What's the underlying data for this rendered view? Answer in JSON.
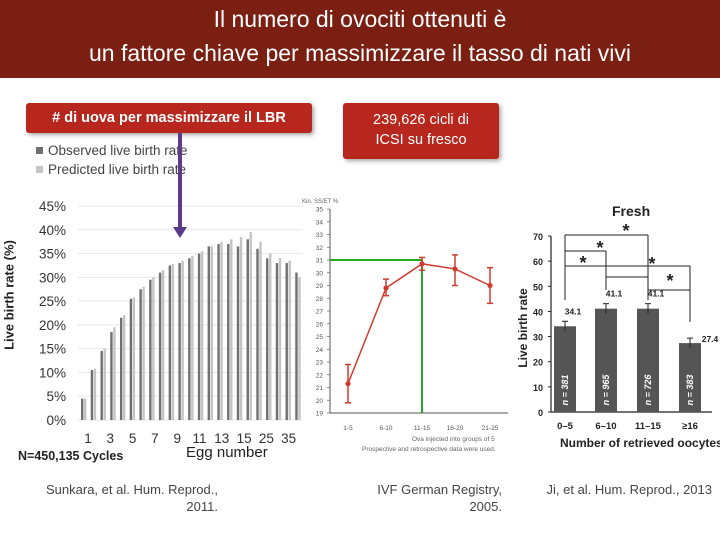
{
  "title": {
    "line1": "Il numero di ovociti ottenuti è",
    "line2": "un fattore chiave per massimizzare il tasso di nati vivi"
  },
  "callouts": {
    "left": "# di uova per massimizzare il LBR",
    "right_line1": "239,626 cicli di",
    "right_line2": "ICSI su fresco"
  },
  "citations": {
    "left_line1": "Sunkara, et al. Hum. Reprod.,",
    "left_line2": "2011.",
    "mid_line1": "IVF German Registry,",
    "mid_line2": "2005.",
    "right": "Ji, et al. Hum. Reprod., 2013"
  },
  "colors": {
    "title_bg": "#7a1f12",
    "callout_bg": "#b7271d",
    "observed": "#707070",
    "predicted": "#c4c4c4",
    "arrow": "#5b3b8c",
    "line_red": "#d23a2e",
    "highlight_green": "#22aa22",
    "bar_dark": "#555555"
  },
  "chart_data": [
    {
      "type": "bar",
      "legend": [
        {
          "name": "Observed live birth rate",
          "color": "#707070"
        },
        {
          "name": "Predicted live birth rate",
          "color": "#c4c4c4"
        }
      ],
      "ylabel": "Live birth rate (%)",
      "xlabel": "Egg number",
      "note": "N=450,135  Cycles",
      "yticks": [
        "45%",
        "40%",
        "35%",
        "30%",
        "25%",
        "20%",
        "15%",
        "10%",
        "5%",
        "0%"
      ],
      "xticks": [
        "1",
        "3",
        "5",
        "7",
        "9",
        "11",
        "13",
        "15",
        "25",
        "35"
      ],
      "ylim": [
        0,
        45
      ],
      "categories": [
        "1",
        "2",
        "3",
        "4",
        "5",
        "6",
        "7",
        "8",
        "9",
        "10",
        "11",
        "12",
        "13",
        "14",
        "15",
        "16",
        "17",
        "18",
        "19",
        "20",
        "21-25",
        "26-30",
        "31-35"
      ],
      "series": [
        {
          "name": "Observed live birth rate",
          "values": [
            4.5,
            10.5,
            14.5,
            18.5,
            21.5,
            25.5,
            27.5,
            29.5,
            31.0,
            32.5,
            33.0,
            34.0,
            35.0,
            36.5,
            37.0,
            37.0,
            36.5,
            38.0,
            36.0,
            34.0,
            33.0,
            33.0,
            31.0
          ]
        },
        {
          "name": "Predicted live birth rate",
          "values": [
            4.5,
            10.8,
            15.0,
            19.5,
            22.0,
            25.8,
            28.0,
            30.0,
            31.5,
            32.8,
            33.5,
            34.5,
            35.5,
            36.5,
            37.5,
            38.0,
            38.5,
            39.5,
            37.5,
            35.0,
            34.0,
            33.5,
            30.0
          ]
        }
      ]
    },
    {
      "type": "line",
      "ylabel": "Kin. SS/ET %",
      "yticks": [
        "35",
        "34",
        "33",
        "32",
        "31",
        "30",
        "29",
        "28",
        "27",
        "26",
        "25",
        "24",
        "23",
        "22",
        "21",
        "20",
        "19"
      ],
      "ylim": [
        19,
        35
      ],
      "categories": [
        "1-5",
        "6-10",
        "11-15",
        "16-20",
        "21-25"
      ],
      "values": [
        21.3,
        28.8,
        30.7,
        30.3,
        29.0
      ],
      "err_low": [
        19.8,
        28.2,
        30.2,
        29.0,
        27.6
      ],
      "err_high": [
        22.8,
        29.5,
        31.2,
        31.4,
        30.4
      ],
      "highlight_y": 31,
      "footnote_line1": "Ova injected into groups of 5",
      "footnote_line2": "Prospective and retrospective data were used."
    },
    {
      "type": "bar",
      "title": "Fresh",
      "ylabel": "Live birth rate",
      "xlabel": "Number of retrieved oocytes",
      "yticks": [
        "70",
        "60",
        "50",
        "40",
        "30",
        "20",
        "10",
        "0"
      ],
      "ylim": [
        0,
        70
      ],
      "categories": [
        "0–5",
        "6–10",
        "11–15",
        "≥16"
      ],
      "values": [
        34.1,
        41.1,
        41.1,
        27.4
      ],
      "value_labels": [
        "34.1",
        "41.1",
        "41.1",
        "27.4"
      ],
      "n_labels": [
        "n = 381",
        "n = 965",
        "n = 726",
        "n = 383"
      ],
      "significance": [
        "*",
        "*",
        "*",
        "*",
        "*"
      ]
    }
  ]
}
